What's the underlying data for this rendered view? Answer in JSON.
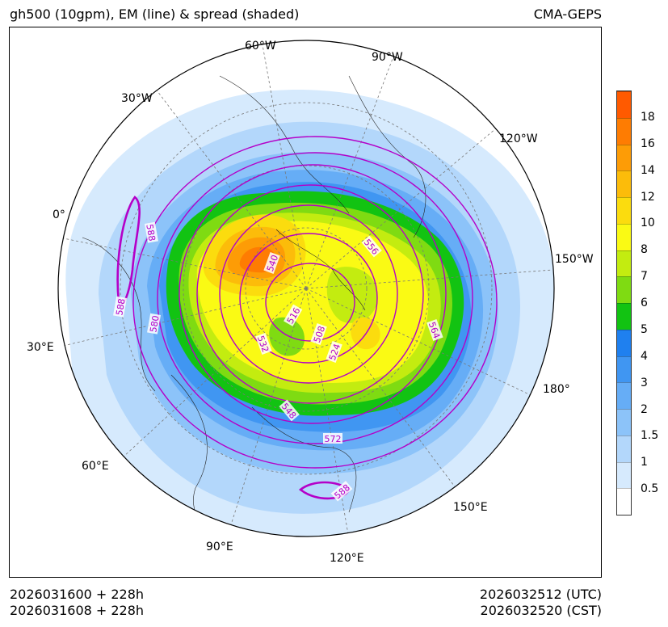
{
  "header": {
    "title": "gh500 (10gpm), EM (line) & spread (shaded)",
    "source": "CMA-GEPS"
  },
  "footer": {
    "init_utc": "2026031600 + 228h",
    "init_cst": "2026031608 + 228h",
    "valid_utc": "2026032512 (UTC)",
    "valid_cst": "2026032520 (CST)"
  },
  "map": {
    "projection": "north polar stereographic",
    "longitude_labels": [
      "60°W",
      "90°W",
      "30°W",
      "120°W",
      "0°",
      "150°W",
      "30°E",
      "180°",
      "60°E",
      "150°E",
      "90°E",
      "120°E"
    ],
    "contour_labels": [
      "588",
      "588",
      "580",
      "540",
      "556",
      "516",
      "508",
      "532",
      "524",
      "564",
      "548",
      "572",
      "588"
    ],
    "contour_color": "#b400c8"
  },
  "colorbar": {
    "labels": [
      "0.5",
      "1",
      "1.5",
      "2",
      "3",
      "4",
      "5",
      "6",
      "7",
      "8",
      "10",
      "12",
      "14",
      "16",
      "18"
    ],
    "colors": [
      "#ffffff",
      "#d6eafd",
      "#b3d7fb",
      "#8cc3f9",
      "#66adf6",
      "#4096f2",
      "#1f80ef",
      "#12c312",
      "#7fdb12",
      "#c3ec10",
      "#fafa14",
      "#fbdc0e",
      "#fcbc0a",
      "#fd9c06",
      "#fe7c02",
      "#ff5a00"
    ]
  }
}
